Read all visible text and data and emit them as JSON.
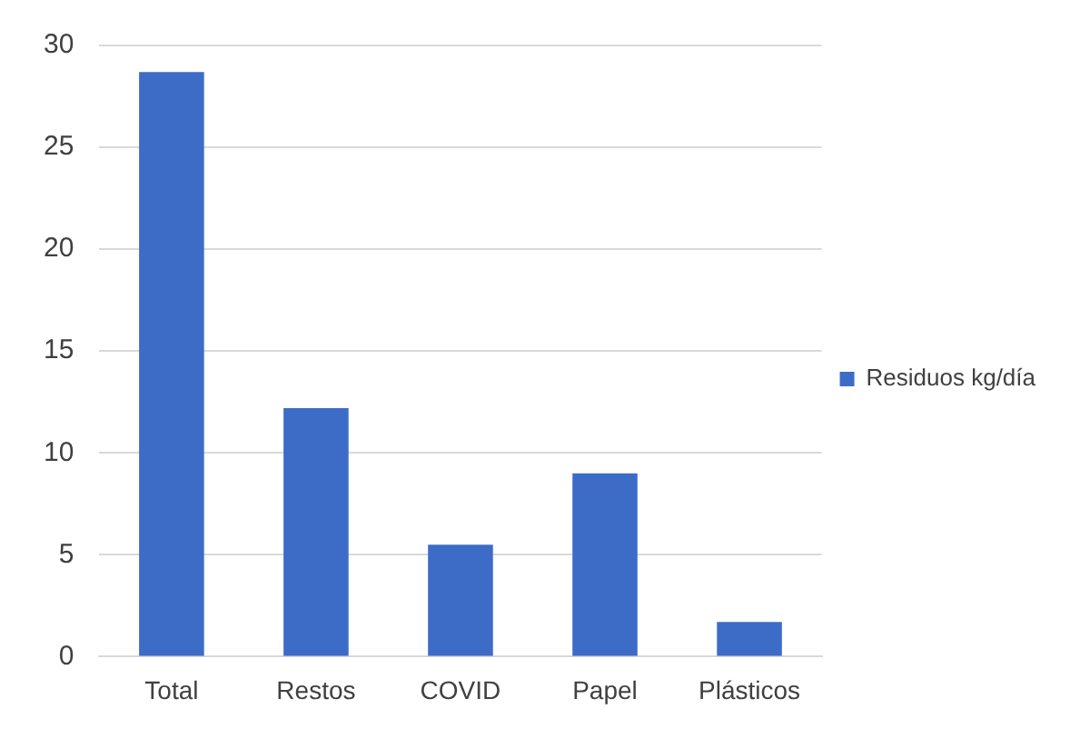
{
  "chart_data": {
    "type": "bar",
    "categories": [
      "Total",
      "Restos",
      "COVID",
      "Papel",
      "Plásticos"
    ],
    "series": [
      {
        "name": "Residuos kg/día",
        "color": "#3d6cc7",
        "values": [
          28.7,
          12.2,
          5.5,
          9.0,
          1.7
        ]
      }
    ],
    "ylim": [
      0,
      30
    ],
    "yticks": [
      0,
      5,
      10,
      15,
      20,
      25,
      30
    ],
    "grid": "y",
    "legend": "right"
  }
}
